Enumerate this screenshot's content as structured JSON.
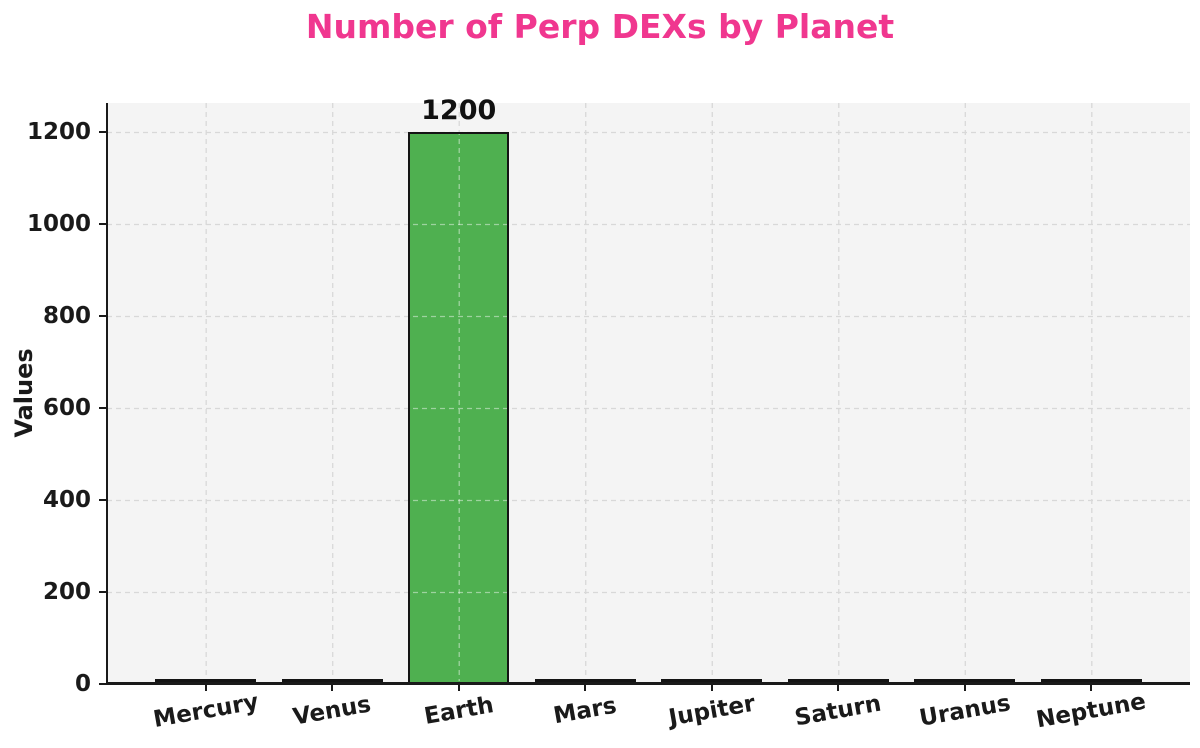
{
  "chart_data": {
    "type": "bar",
    "title": "Number of Perp DEXs by Planet",
    "categories": [
      "Mercury",
      "Venus",
      "Earth",
      "Mars",
      "Jupiter",
      "Saturn",
      "Uranus",
      "Neptune"
    ],
    "values": [
      0,
      0,
      1200,
      0,
      0,
      0,
      0,
      0
    ],
    "bar_value_label": "1200",
    "xlabel": "",
    "ylabel": "Values",
    "ylim": [
      0,
      1263
    ],
    "yticks": [
      0,
      200,
      400,
      600,
      800,
      1000,
      1200
    ],
    "grid": "dashed-both-axes",
    "legend_position": "none",
    "colors": {
      "title": "#f0378f",
      "bar_fill": "#4fb050",
      "bar_edge": "#141414",
      "plot_background": "#f4f4f4",
      "figure_background": "#ffffff",
      "gridline": "#d8d8d8",
      "axis_text": "#1a1a1a"
    }
  }
}
